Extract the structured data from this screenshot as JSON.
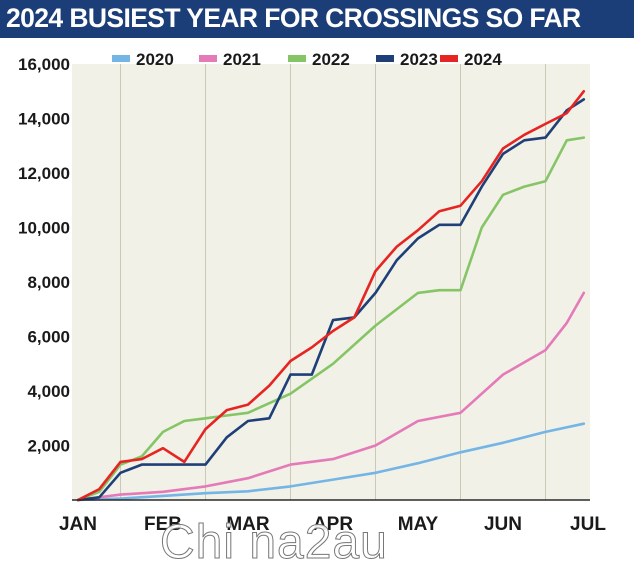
{
  "header": {
    "title": "2024 BUSIEST YEAR FOR CROSSINGS SO FAR"
  },
  "watermark": "Chi na2au",
  "colors": {
    "title_bar": "#1c3e78",
    "grid": "#c9c9b6",
    "plot_bg": "#f1f1e7"
  },
  "chart_data": {
    "type": "line",
    "title": "2024 BUSIEST YEAR FOR CROSSINGS SO FAR",
    "xlabel": "",
    "ylabel": "",
    "x_months": [
      "JAN",
      "FEB",
      "MAR",
      "APR",
      "MAY",
      "JUN",
      "JUL"
    ],
    "xlim": [
      1,
      7
    ],
    "ylim": [
      0,
      16000
    ],
    "yticks": [
      2000,
      4000,
      6000,
      8000,
      10000,
      12000,
      14000,
      16000
    ],
    "ytick_labels": [
      "2,000",
      "4,000",
      "6,000",
      "8,000",
      "10,000",
      "12,000",
      "14,000",
      "16,000"
    ],
    "grid": "vertical",
    "legend_position": "top",
    "series": [
      {
        "name": "2020",
        "color": "#74b5e6",
        "x": [
          1.0,
          1.5,
          2.0,
          2.5,
          3.0,
          3.5,
          4.0,
          4.5,
          5.0,
          5.5,
          6.0,
          6.5,
          6.95
        ],
        "y": [
          0,
          50,
          150,
          250,
          320,
          500,
          750,
          1000,
          1350,
          1750,
          2100,
          2500,
          2800
        ]
      },
      {
        "name": "2021",
        "color": "#e57ab9",
        "x": [
          1.0,
          1.5,
          2.0,
          2.5,
          3.0,
          3.5,
          4.0,
          4.5,
          5.0,
          5.5,
          6.0,
          6.5,
          6.75,
          6.95
        ],
        "y": [
          0,
          200,
          300,
          500,
          800,
          1300,
          1500,
          2000,
          2900,
          3200,
          4600,
          5500,
          6500,
          7600
        ]
      },
      {
        "name": "2022",
        "color": "#86c566",
        "x": [
          1.0,
          1.25,
          1.5,
          1.75,
          2.0,
          2.25,
          2.5,
          2.75,
          3.0,
          3.5,
          4.0,
          4.5,
          5.0,
          5.25,
          5.5,
          5.75,
          6.0,
          6.25,
          6.5,
          6.75,
          6.95
        ],
        "y": [
          0,
          300,
          1300,
          1600,
          2500,
          2900,
          3000,
          3100,
          3200,
          3900,
          5000,
          6400,
          7600,
          7700,
          7700,
          10000,
          11200,
          11500,
          11700,
          13200,
          13300
        ]
      },
      {
        "name": "2023",
        "color": "#1e3f77",
        "x": [
          1.0,
          1.25,
          1.5,
          1.75,
          2.0,
          2.25,
          2.5,
          2.75,
          3.0,
          3.25,
          3.5,
          3.75,
          4.0,
          4.25,
          4.5,
          4.75,
          5.0,
          5.25,
          5.5,
          5.75,
          6.0,
          6.25,
          6.5,
          6.75,
          6.95
        ],
        "y": [
          0,
          100,
          1000,
          1300,
          1300,
          1300,
          1300,
          2300,
          2900,
          3000,
          4600,
          4600,
          6600,
          6700,
          7600,
          8800,
          9600,
          10100,
          10100,
          11500,
          12700,
          13200,
          13300,
          14300,
          14700
        ]
      },
      {
        "name": "2024",
        "color": "#e62523",
        "x": [
          1.0,
          1.25,
          1.5,
          1.75,
          2.0,
          2.25,
          2.5,
          2.75,
          3.0,
          3.25,
          3.5,
          3.75,
          4.0,
          4.25,
          4.5,
          4.75,
          5.0,
          5.25,
          5.5,
          5.75,
          6.0,
          6.25,
          6.5,
          6.75,
          6.95
        ],
        "y": [
          0,
          400,
          1400,
          1500,
          1900,
          1400,
          2600,
          3300,
          3500,
          4200,
          5100,
          5600,
          6200,
          6700,
          8400,
          9300,
          9900,
          10600,
          10800,
          11700,
          12900,
          13400,
          13800,
          14200,
          15000
        ]
      }
    ]
  }
}
